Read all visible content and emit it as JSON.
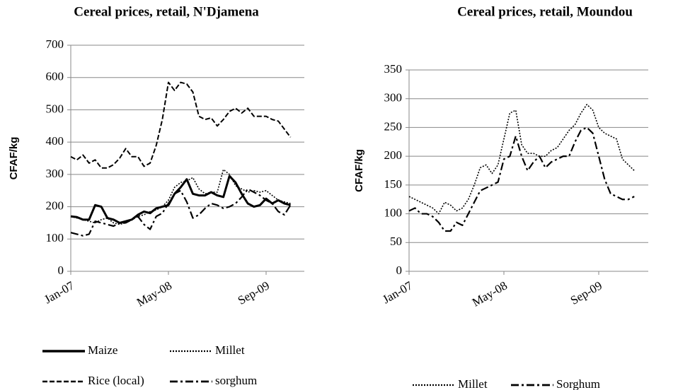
{
  "chart_data": [
    {
      "type": "line",
      "title": "Cereal prices, retail, N'Djamena",
      "y_label": "CFAF/kg",
      "categories": [
        "Jan-07",
        null,
        null,
        null,
        null,
        null,
        null,
        null,
        null,
        null,
        null,
        null,
        null,
        null,
        null,
        null,
        "May-08",
        null,
        null,
        null,
        null,
        null,
        null,
        null,
        null,
        null,
        null,
        null,
        null,
        null,
        null,
        null,
        "Sep-09",
        null,
        null,
        null,
        null
      ],
      "ylim": [
        0,
        700
      ],
      "yticks": [
        0,
        100,
        200,
        300,
        400,
        500,
        600,
        700
      ],
      "grid": true,
      "series": [
        {
          "name": "Maize",
          "color": "#000000",
          "line_style": "solid",
          "values": [
            170,
            168,
            160,
            160,
            205,
            200,
            165,
            160,
            150,
            155,
            160,
            175,
            185,
            180,
            195,
            200,
            205,
            240,
            260,
            285,
            240,
            235,
            235,
            245,
            235,
            230,
            295,
            275,
            240,
            210,
            200,
            205,
            225,
            210,
            220,
            210,
            205
          ]
        },
        {
          "name": "Millet",
          "color": "#000000",
          "line_style": "dotted",
          "values": [
            170,
            165,
            160,
            155,
            150,
            160,
            165,
            150,
            145,
            150,
            160,
            170,
            175,
            185,
            190,
            200,
            220,
            260,
            275,
            280,
            290,
            255,
            240,
            245,
            245,
            315,
            300,
            265,
            255,
            245,
            250,
            245,
            250,
            235,
            220,
            215,
            210
          ]
        },
        {
          "name": "Rice (local)",
          "color": "#000000",
          "line_style": "dashed",
          "values": [
            355,
            345,
            360,
            335,
            345,
            320,
            320,
            330,
            350,
            380,
            355,
            355,
            325,
            335,
            390,
            470,
            585,
            560,
            585,
            580,
            555,
            480,
            470,
            475,
            450,
            470,
            495,
            505,
            490,
            505,
            480,
            480,
            480,
            470,
            465,
            440,
            415
          ]
        },
        {
          "name": "sorghum",
          "color": "#000000",
          "line_style": "dashdot",
          "values": [
            120,
            115,
            110,
            115,
            155,
            150,
            145,
            140,
            150,
            150,
            160,
            170,
            145,
            130,
            170,
            180,
            210,
            240,
            250,
            215,
            165,
            175,
            195,
            210,
            205,
            195,
            200,
            210,
            230,
            255,
            245,
            235,
            220,
            210,
            185,
            175,
            205
          ]
        }
      ]
    },
    {
      "type": "line",
      "title": "Cereal prices, retail, Moundou",
      "y_label": "CFAF/kg",
      "categories": [
        "Jan-07",
        null,
        null,
        null,
        null,
        null,
        null,
        null,
        null,
        null,
        null,
        null,
        null,
        null,
        null,
        null,
        "May-08",
        null,
        null,
        null,
        null,
        null,
        null,
        null,
        null,
        null,
        null,
        null,
        null,
        null,
        null,
        null,
        "Sep-09",
        null,
        null,
        null,
        null,
        null,
        null
      ],
      "ylim": [
        0,
        350
      ],
      "yticks": [
        0,
        50,
        100,
        150,
        200,
        250,
        300,
        350
      ],
      "grid": true,
      "series": [
        {
          "name": "Millet",
          "color": "#000000",
          "line_style": "dotted",
          "values": [
            130,
            125,
            120,
            115,
            110,
            100,
            120,
            115,
            105,
            110,
            125,
            150,
            180,
            185,
            170,
            185,
            230,
            275,
            280,
            220,
            205,
            205,
            200,
            200,
            210,
            215,
            230,
            245,
            255,
            275,
            290,
            280,
            250,
            240,
            235,
            230,
            195,
            185,
            175
          ]
        },
        {
          "name": "Sorghum",
          "color": "#000000",
          "line_style": "dashdot",
          "values": [
            105,
            110,
            100,
            100,
            95,
            85,
            70,
            70,
            85,
            80,
            100,
            120,
            140,
            145,
            150,
            155,
            195,
            200,
            235,
            200,
            175,
            190,
            200,
            180,
            190,
            195,
            200,
            200,
            225,
            245,
            250,
            240,
            200,
            160,
            135,
            130,
            125,
            125,
            130
          ]
        }
      ]
    }
  ]
}
